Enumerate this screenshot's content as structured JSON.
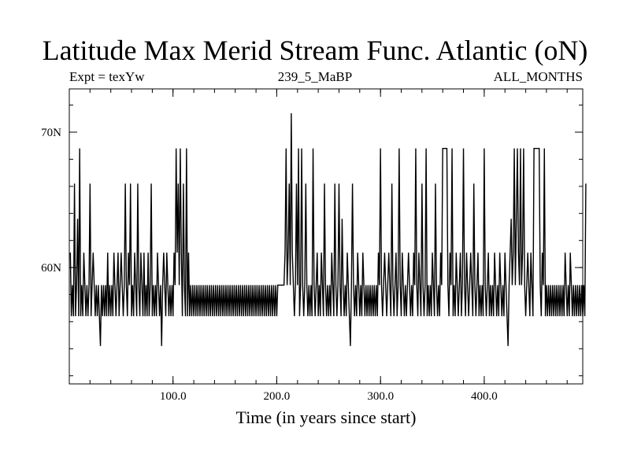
{
  "chart_data": {
    "type": "line",
    "title": "Latitude Max Merid Stream Func. Atlantic (oN)",
    "subtitle_left": "Expt = texYw",
    "subtitle_center": "239_5_MaBP",
    "subtitle_right": "ALL_MONTHS",
    "xlabel": "Time (in years since start)",
    "ylabel": "",
    "xlim": [
      0,
      495
    ],
    "ylim": [
      51.4,
      73.2
    ],
    "x_ticks": [
      {
        "value": 100,
        "label": "100.0"
      },
      {
        "value": 200,
        "label": "200.0"
      },
      {
        "value": 300,
        "label": "300.0"
      },
      {
        "value": 400,
        "label": "400.0"
      }
    ],
    "y_ticks": [
      {
        "value": 60,
        "label": "60N"
      },
      {
        "value": 70,
        "label": "70N"
      }
    ],
    "y_levels_observed": [
      54.2,
      56.4,
      58.7,
      61.1,
      63.6,
      66.2,
      68.8,
      71.4
    ],
    "series": [
      {
        "values": [
          61.1,
          56.4,
          58.7,
          56.4,
          66.2,
          56.4,
          58.7,
          63.6,
          56.4,
          68.8,
          56.4,
          58.7,
          56.4,
          61.1,
          58.7,
          56.4,
          58.7,
          56.4,
          58.7,
          66.2,
          56.4,
          58.7,
          61.1,
          58.7,
          56.4,
          58.7,
          56.4,
          58.7,
          56.4,
          54.2,
          58.7,
          56.4,
          58.7,
          56.4,
          58.7,
          56.4,
          61.1,
          56.4,
          58.7,
          56.4,
          58.7,
          56.4,
          61.1,
          58.7,
          56.4,
          58.7,
          61.1,
          56.4,
          58.7,
          61.1,
          58.7,
          56.4,
          58.7,
          66.2,
          58.7,
          56.4,
          61.1,
          58.7,
          66.2,
          56.4,
          58.7,
          56.4,
          61.1,
          58.7,
          56.4,
          66.2,
          58.7,
          56.4,
          61.1,
          58.7,
          56.4,
          61.1,
          56.4,
          58.7,
          56.4,
          61.1,
          56.4,
          58.7,
          66.2,
          56.4,
          58.7,
          56.4,
          58.7,
          56.4,
          61.1,
          58.7,
          56.4,
          58.7,
          54.2,
          58.7,
          61.1,
          58.7,
          56.4,
          61.1,
          58.7,
          56.4,
          58.7,
          56.4,
          58.7,
          56.4,
          61.1,
          58.7,
          68.8,
          61.1,
          66.2,
          58.7,
          68.8,
          61.1,
          56.4,
          66.2,
          58.7,
          56.4,
          68.8,
          56.4,
          61.1,
          56.4,
          58.7,
          56.4,
          58.7,
          56.4,
          58.7,
          56.4,
          58.7,
          56.4,
          58.7,
          56.4,
          58.7,
          56.4,
          58.7,
          56.4,
          58.7,
          56.4,
          58.7,
          56.4,
          58.7,
          56.4,
          58.7,
          56.4,
          58.7,
          56.4,
          58.7,
          56.4,
          58.7,
          56.4,
          58.7,
          56.4,
          58.7,
          56.4,
          58.7,
          56.4,
          58.7,
          56.4,
          58.7,
          56.4,
          58.7,
          56.4,
          58.7,
          56.4,
          58.7,
          56.4,
          58.7,
          56.4,
          58.7,
          56.4,
          58.7,
          56.4,
          58.7,
          56.4,
          58.7,
          56.4,
          58.7,
          56.4,
          58.7,
          56.4,
          58.7,
          56.4,
          58.7,
          56.4,
          58.7,
          56.4,
          58.7,
          56.4,
          58.7,
          56.4,
          58.7,
          56.4,
          58.7,
          56.4,
          58.7,
          56.4,
          58.7,
          56.4,
          58.7,
          56.4,
          58.7,
          56.4,
          58.7,
          56.4,
          58.7,
          56.4,
          58.7,
          58.7,
          58.7,
          58.7,
          58.7,
          58.7,
          58.7,
          61.1,
          68.8,
          58.7,
          61.1,
          66.2,
          58.7,
          71.4,
          61.1,
          58.7,
          56.4,
          58.7,
          66.2,
          58.7,
          68.8,
          56.4,
          58.7,
          68.8,
          58.7,
          56.4,
          58.7,
          66.2,
          58.7,
          56.4,
          58.7,
          56.4,
          58.7,
          56.4,
          68.8,
          58.7,
          56.4,
          58.7,
          61.1,
          56.4,
          58.7,
          56.4,
          61.1,
          58.7,
          56.4,
          66.2,
          58.7,
          56.4,
          58.7,
          56.4,
          58.7,
          56.4,
          61.1,
          58.7,
          56.4,
          66.2,
          58.7,
          56.4,
          58.7,
          66.2,
          58.7,
          56.4,
          63.6,
          58.7,
          56.4,
          58.7,
          56.4,
          61.1,
          58.7,
          56.4,
          54.2,
          58.7,
          66.2,
          58.7,
          56.4,
          58.7,
          56.4,
          61.1,
          58.7,
          56.4,
          58.7,
          56.4,
          61.1,
          58.7,
          56.4,
          58.7,
          56.4,
          58.7,
          56.4,
          58.7,
          56.4,
          58.7,
          56.4,
          58.7,
          56.4,
          58.7,
          56.4,
          61.1,
          58.7,
          68.8,
          58.7,
          56.4,
          58.7,
          61.1,
          58.7,
          56.4,
          58.7,
          61.1,
          58.7,
          56.4,
          66.2,
          58.7,
          56.4,
          58.7,
          61.1,
          56.4,
          58.7,
          68.8,
          58.7,
          56.4,
          61.1,
          58.7,
          56.4,
          58.7,
          56.4,
          58.7,
          61.1,
          58.7,
          56.4,
          58.7,
          56.4,
          61.1,
          58.7,
          68.8,
          58.7,
          56.4,
          61.1,
          58.7,
          56.4,
          66.2,
          58.7,
          56.4,
          58.7,
          68.8,
          56.4,
          58.7,
          56.4,
          58.7,
          56.4,
          61.1,
          58.7,
          56.4,
          66.2,
          58.7,
          56.4,
          58.7,
          56.4,
          61.1,
          58.7,
          68.8,
          68.8,
          68.8,
          68.8,
          68.8,
          58.7,
          56.4,
          61.1,
          58.7,
          68.8,
          56.4,
          58.7,
          56.4,
          61.1,
          58.7,
          56.4,
          58.7,
          61.1,
          56.4,
          58.7,
          68.8,
          58.7,
          56.4,
          61.1,
          58.7,
          56.4,
          58.7,
          61.1,
          58.7,
          56.4,
          66.2,
          58.7,
          56.4,
          58.7,
          61.1,
          56.4,
          58.7,
          56.4,
          58.7,
          56.4,
          68.8,
          58.7,
          56.4,
          58.7,
          61.1,
          56.4,
          58.7,
          56.4,
          58.7,
          56.4,
          61.1,
          58.7,
          56.4,
          58.7,
          56.4,
          61.1,
          58.7,
          56.4,
          58.7,
          56.4,
          61.1,
          58.7,
          56.4,
          54.2,
          58.7,
          61.1,
          63.6,
          58.7,
          61.1,
          68.8,
          58.7,
          63.6,
          68.8,
          61.1,
          58.7,
          68.8,
          58.7,
          61.1,
          68.8,
          58.7,
          56.4,
          58.7,
          61.1,
          58.7,
          56.4,
          61.1,
          58.7,
          56.4,
          68.8,
          68.8,
          68.8,
          68.8,
          68.8,
          68.8,
          58.7,
          56.4,
          61.1,
          58.7,
          68.8,
          56.4,
          58.7,
          56.4,
          58.7,
          56.4,
          58.7,
          56.4,
          58.7,
          56.4,
          58.7,
          56.4,
          58.7,
          56.4,
          58.7,
          56.4,
          58.7,
          56.4,
          58.7,
          56.4,
          61.1,
          58.7,
          56.4,
          58.7,
          56.4,
          61.1,
          58.7,
          56.4,
          58.7,
          56.4,
          58.7,
          56.4,
          58.7,
          56.4,
          58.7,
          56.4,
          58.7,
          56.4,
          58.7,
          56.4,
          66.2
        ],
        "color": "#000000"
      }
    ],
    "grid": false
  }
}
